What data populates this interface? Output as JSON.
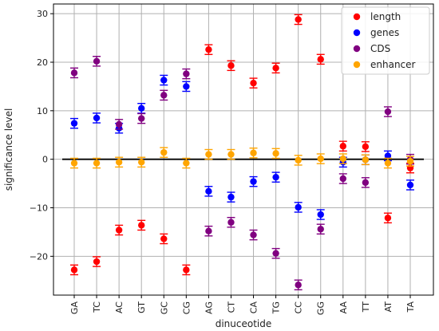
{
  "chart_data": {
    "type": "scatter",
    "title": "",
    "xlabel": "dinuceotide",
    "ylabel": "significance level",
    "categories": [
      "GA",
      "TC",
      "AC",
      "GT",
      "GC",
      "CG",
      "AG",
      "CT",
      "CA",
      "TG",
      "CC",
      "GG",
      "AA",
      "TT",
      "AT",
      "TA"
    ],
    "ylim": [
      -28,
      32
    ],
    "yticks": [
      -20,
      -10,
      0,
      10,
      20,
      30
    ],
    "grid": true,
    "legend_position": "top-right",
    "reference_line_y": 0,
    "series": [
      {
        "name": "length",
        "color": "#ff0000",
        "values": [
          -22.8,
          -21.1,
          -14.6,
          -13.6,
          -16.4,
          -22.8,
          22.6,
          19.3,
          15.7,
          18.8,
          28.8,
          20.6,
          2.7,
          2.6,
          -12.1,
          -1.8
        ],
        "errors": [
          1,
          1,
          1,
          1,
          1,
          1,
          1,
          1,
          1,
          1,
          1,
          1,
          1,
          1,
          1,
          1
        ]
      },
      {
        "name": "genes",
        "color": "#0000ff",
        "values": [
          7.4,
          8.5,
          6.4,
          10.5,
          16.3,
          15.0,
          -6.6,
          -7.8,
          -4.6,
          -3.7,
          -9.9,
          -11.4,
          -0.6,
          -0.1,
          0.7,
          -5.3
        ],
        "errors": [
          1,
          1,
          1,
          1,
          1,
          1,
          1,
          1,
          1,
          1,
          1,
          1,
          1,
          1,
          1,
          1
        ]
      },
      {
        "name": "CDS",
        "color": "#800080",
        "values": [
          17.8,
          20.2,
          7.2,
          8.4,
          13.2,
          17.6,
          -14.8,
          -13.0,
          -15.6,
          -19.4,
          -25.9,
          -14.4,
          -4.0,
          -4.8,
          9.8,
          0.0
        ],
        "errors": [
          1,
          1,
          1,
          1,
          1,
          1,
          1,
          1,
          1,
          1,
          1,
          1,
          1,
          1,
          1,
          1
        ]
      },
      {
        "name": "enhancer",
        "color": "#ffa500",
        "values": [
          -0.8,
          -0.8,
          -0.6,
          -0.6,
          1.4,
          -0.8,
          1.0,
          1.0,
          1.3,
          1.2,
          -0.2,
          0.1,
          0.1,
          -0.1,
          -0.8,
          -0.4
        ],
        "errors": [
          1,
          1,
          1,
          1,
          1,
          1,
          1,
          1,
          1,
          1,
          1,
          1,
          1,
          1,
          1,
          1
        ]
      }
    ]
  }
}
